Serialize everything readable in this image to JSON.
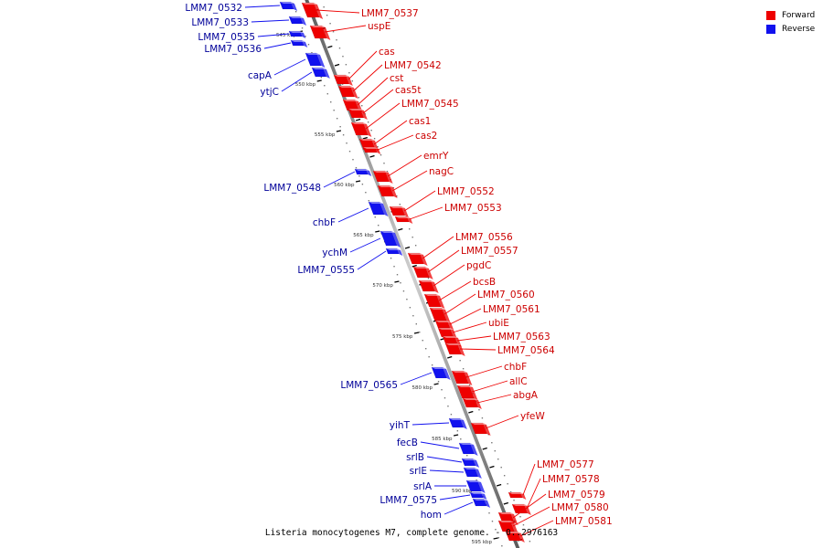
{
  "legend": [
    {
      "label": "Forward",
      "color": "#ee0000"
    },
    {
      "label": "Reverse",
      "color": "#1111ee"
    }
  ],
  "caption": "Listeria monocytogenes M7, complete genome. - 0..2976163",
  "kbp_ticks": [
    "545 kbp",
    "550 kbp",
    "555 kbp",
    "560 kbp",
    "565 kbp",
    "570 kbp",
    "575 kbp",
    "580 kbp",
    "585 kbp",
    "590 kbp",
    "595 kbp"
  ],
  "forward_genes": [
    "LMM7_0537",
    "uspE",
    "cas",
    "LMM7_0542",
    "cst",
    "cas5t",
    "LMM7_0545",
    "cas1",
    "cas2",
    "emrY",
    "nagC",
    "LMM7_0552",
    "LMM7_0553",
    "LMM7_0556",
    "LMM7_0557",
    "pgdC",
    "bcsB",
    "LMM7_0560",
    "LMM7_0561",
    "ubiE",
    "LMM7_0563",
    "LMM7_0564",
    "chbF",
    "allC",
    "abgA",
    "yfeW",
    "LMM7_0577",
    "LMM7_0578",
    "LMM7_0579",
    "LMM7_0580",
    "LMM7_0581"
  ],
  "reverse_genes": [
    "LMM7_0532",
    "LMM7_0533",
    "LMM7_0535",
    "LMM7_0536",
    "capA",
    "ytjC",
    "LMM7_0548",
    "chbF",
    "ychM",
    "LMM7_0555",
    "LMM7_0565",
    "yihT",
    "fecB",
    "srlB",
    "srlE",
    "srlA",
    "LMM7_0575",
    "hom"
  ]
}
